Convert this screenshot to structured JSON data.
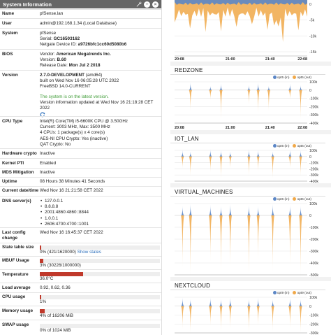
{
  "system_info": {
    "title": "System Information",
    "icons": [
      "wrench-icon",
      "minus-icon",
      "close-icon"
    ],
    "rows": {
      "name": {
        "label": "Name",
        "value": "pfSense.lan"
      },
      "user": {
        "label": "User",
        "value": "admin@192.168.1.34 (Local Database)"
      },
      "system": {
        "label": "System",
        "line1": "pfSense",
        "serial_label": "Serial: ",
        "serial": "GC16503162",
        "netgate_label": "Netgate Device ID: ",
        "netgate": "a9726bfc1cc60d5080b6"
      },
      "bios": {
        "label": "BIOS",
        "vendor_label": "Vendor: ",
        "vendor": "American Megatrends Inc.",
        "version_label": "Version: ",
        "version": "B.60",
        "release_label": "Release Date: ",
        "release": "Mon Jul 2 2018"
      },
      "version": {
        "label": "Version",
        "line1": "2.7.0-DEVELOPMENT",
        "line1_suffix": " (amd64)",
        "line2": "built on Wed Nov 16 06:05:28 UTC 2022",
        "line3": "FreeBSD 14.0-CURRENT",
        "status": "The system is on the latest version.",
        "updated": "Version information updated at Wed Nov 16 21:18:28 CET 2022"
      },
      "cpu": {
        "label": "CPU Type",
        "line1": "Intel(R) Core(TM) i5-6600K CPU @ 3.50GHz",
        "line2": "Current: 3003 MHz, Max: 3500 MHz",
        "line3": "4 CPUs: 1 package(s) x 4 core(s)",
        "line4": "AES-NI CPU Crypto: Yes (inactive)",
        "line5": "QAT Crypto: No"
      },
      "hwcrypto": {
        "label": "Hardware crypto",
        "value": "Inactive"
      },
      "kpti": {
        "label": "Kernel PTI",
        "value": "Enabled"
      },
      "mds": {
        "label": "MDS Mitigation",
        "value": "Inactive"
      },
      "uptime": {
        "label": "Uptime",
        "value": "08 Hours 38 Minutes 41 Seconds"
      },
      "datetime": {
        "label": "Current date/time",
        "value": "Wed Nov 16 21:21:58 CET 2022"
      },
      "dns": {
        "label": "DNS server(s)",
        "servers": [
          "127.0.0.1",
          "8.8.8.8",
          "2001:4860:4860::8844",
          "1.0.0.1",
          "2606:4700:4700::1001"
        ]
      },
      "lastcfg": {
        "label": "Last config change",
        "value": "Wed Nov 16 16:45:37 CET 2022"
      },
      "state": {
        "label": "State table size",
        "value": "0% (421/1620000)",
        "link": "Show states",
        "fill": 0.004
      },
      "mbuf": {
        "label": "MBUF Usage",
        "value": "3% (30226/1000000)",
        "fill": 0.03
      },
      "temp": {
        "label": "Temperature",
        "value": "36.0°C",
        "fill": 0.36
      },
      "load": {
        "label": "Load average",
        "value": "0.92, 0.62, 0.36"
      },
      "cpuuse": {
        "label": "CPU usage",
        "value": "1%",
        "fill": 0.01
      },
      "mem": {
        "label": "Memory usage",
        "value": "4% of 16206 MiB",
        "fill": 0.04
      },
      "swap": {
        "label": "SWAP usage",
        "value": "0% of 1024 MiB",
        "fill": 0.0
      }
    }
  },
  "graphs": {
    "colors": {
      "in": "#5b86c5",
      "out": "#f0a848",
      "bar": "#c0392b"
    },
    "top": {
      "title": "",
      "yticks": [
        "0",
        "-5k",
        "-10k",
        "-15k"
      ],
      "xticks": [
        "20:08",
        "21:00",
        "21:40",
        "22:08"
      ]
    },
    "panels": [
      {
        "title": "REDZONE",
        "legend_in": "opt5 (in)",
        "legend_out": "opt5 (out)",
        "yticks": [
          "100k",
          "0",
          "-100k",
          "-200k",
          "-300k",
          "-400k"
        ],
        "xticks": [
          "20:08",
          "21:00",
          "21:40",
          "22:08"
        ]
      },
      {
        "title": "IOT_LAN",
        "legend_in": "opt6 (in)",
        "legend_out": "opt6 (out)",
        "yticks": [
          "100k",
          "0",
          "-100k",
          "-200k",
          "-300k",
          "-400k"
        ],
        "xticks": []
      },
      {
        "title": "VIRTUAL_MACHINES",
        "legend_in": "opt6 (in)",
        "legend_out": "opt6 (out)",
        "yticks": [
          "100k",
          "0",
          "-100k",
          "-200k",
          "-300k",
          "-400k",
          "-500k"
        ],
        "xticks": []
      },
      {
        "title": "NEXTCLOUD",
        "legend_in": "opt9 (in)",
        "legend_out": "opt9 (out)",
        "yticks": [
          "100k",
          "0",
          "-100k",
          "-200k",
          "-300k"
        ],
        "xticks": []
      }
    ]
  }
}
